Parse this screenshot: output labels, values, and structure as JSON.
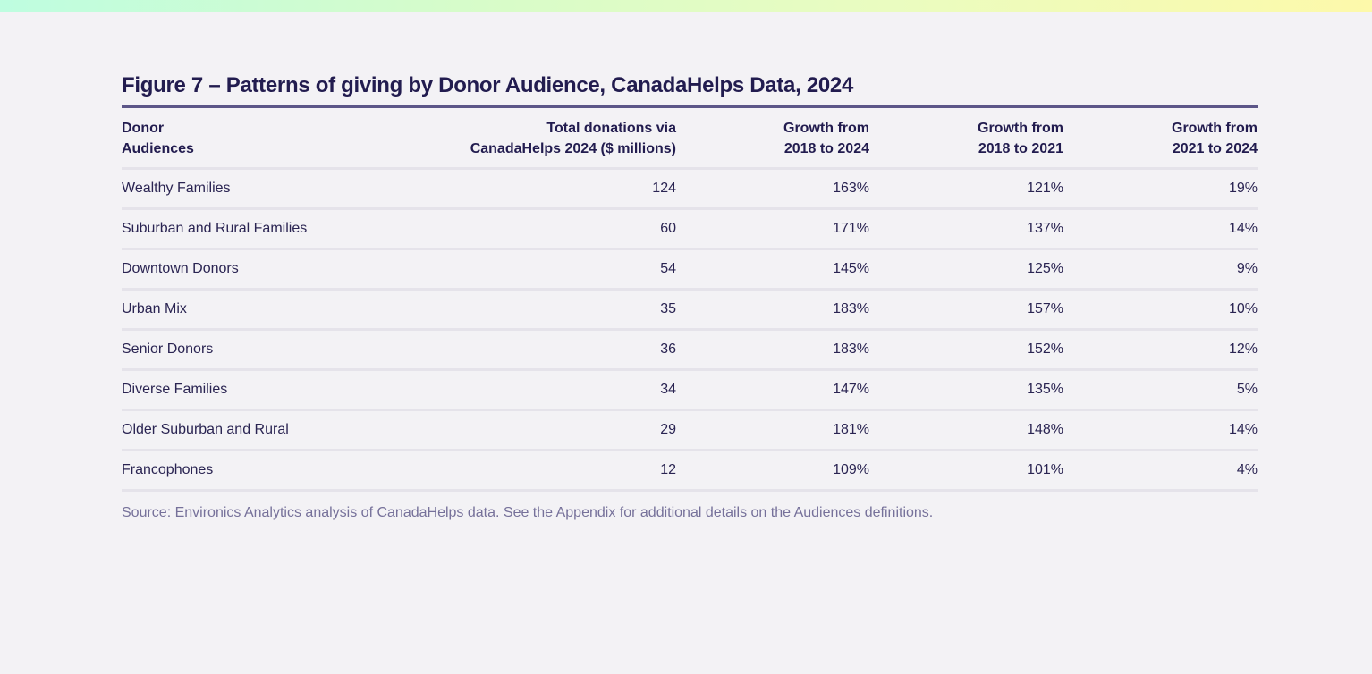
{
  "figure": {
    "title": "Figure 7 – Patterns of giving by Donor Audience, CanadaHelps Data, 2024",
    "headers": [
      [
        "Donor",
        "Audiences"
      ],
      [
        "Total donations via",
        "CanadaHelps 2024 ($ millions)"
      ],
      [
        "Growth from",
        "2018 to 2024"
      ],
      [
        "Growth from",
        "2018 to 2021"
      ],
      [
        "Growth from",
        "2021 to 2024"
      ]
    ],
    "rows": [
      [
        "Wealthy Families",
        "124",
        "163%",
        "121%",
        "19%"
      ],
      [
        "Suburban and Rural Families",
        "60",
        "171%",
        "137%",
        "14%"
      ],
      [
        "Downtown Donors",
        "54",
        "145%",
        "125%",
        "9%"
      ],
      [
        "Urban Mix",
        "35",
        "183%",
        "157%",
        "10%"
      ],
      [
        "Senior Donors",
        "36",
        "183%",
        "152%",
        "12%"
      ],
      [
        "Diverse Families",
        "34",
        "147%",
        "135%",
        "5%"
      ],
      [
        "Older Suburban and Rural",
        "29",
        "181%",
        "148%",
        "14%"
      ],
      [
        "Francophones",
        "12",
        "109%",
        "101%",
        "4%"
      ]
    ],
    "source": "Source: Environics Analytics analysis of CanadaHelps data. See the Appendix for additional details on the Audiences definitions."
  },
  "colors": {
    "text": "#221c4f",
    "title_rule": "#5c5688",
    "row_rule": "#e5e3ea",
    "source_text": "#76719a",
    "background": "#f3f2f5"
  }
}
